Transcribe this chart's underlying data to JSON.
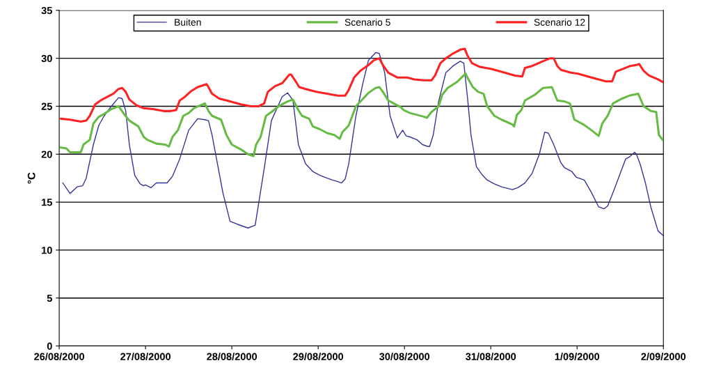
{
  "chart_data": {
    "type": "line",
    "ylabel": "°C",
    "xlim": [
      "2000-08-26",
      "2000-09-02"
    ],
    "ylim": [
      0,
      35
    ],
    "xticks": [
      {
        "value": "2000-08-26",
        "label": "26/08/2000"
      },
      {
        "value": "2000-08-27",
        "label": "27/08/2000"
      },
      {
        "value": "2000-08-28",
        "label": "28/08/2000"
      },
      {
        "value": "2000-08-29",
        "label": "29/08/2000"
      },
      {
        "value": "2000-08-30",
        "label": "30/08/2000"
      },
      {
        "value": "2000-08-31",
        "label": "31/08/2000"
      },
      {
        "value": "2000-09-01",
        "label": "1/09/2000"
      },
      {
        "value": "2000-09-02",
        "label": "2/09/2000"
      }
    ],
    "yticks": [
      0,
      5,
      10,
      15,
      20,
      25,
      30,
      35
    ],
    "grid": "y",
    "legend": "top",
    "marker": "none",
    "line_style": "solid",
    "series": [
      {
        "name": "Buiten",
        "color": "#333399",
        "x": [
          "2000-08-26T01:00",
          "2000-08-26T03:00",
          "2000-08-26T05:00",
          "2000-08-26T06:30",
          "2000-08-26T07:30",
          "2000-08-26T09:30",
          "2000-08-26T11:00",
          "2000-08-26T12:30",
          "2000-08-26T14:30",
          "2000-08-26T16:30",
          "2000-08-26T17:30",
          "2000-08-26T18:30",
          "2000-08-26T19:30",
          "2000-08-26T21:00",
          "2000-08-26T22:30",
          "2000-08-26T23:30",
          "2000-08-27T00:00",
          "2000-08-27T01:30",
          "2000-08-27T03:00",
          "2000-08-27T06:00",
          "2000-08-27T07:30",
          "2000-08-27T09:30",
          "2000-08-27T12:00",
          "2000-08-27T14:30",
          "2000-08-27T16:30",
          "2000-08-27T17:30",
          "2000-08-27T18:30",
          "2000-08-27T20:00",
          "2000-08-27T21:30",
          "2000-08-27T23:30",
          "2000-08-28T01:30",
          "2000-08-28T04:30",
          "2000-08-28T06:30",
          "2000-08-28T07:00",
          "2000-08-28T09:00",
          "2000-08-28T11:00",
          "2000-08-28T14:00",
          "2000-08-28T15:30",
          "2000-08-28T17:00",
          "2000-08-28T18:30",
          "2000-08-28T20:30",
          "2000-08-28T22:30",
          "2000-08-29T00:30",
          "2000-08-29T02:30",
          "2000-08-29T04:00",
          "2000-08-29T05:00",
          "2000-08-29T06:30",
          "2000-08-29T07:30",
          "2000-08-29T08:30",
          "2000-08-29T10:30",
          "2000-08-29T12:30",
          "2000-08-29T14:00",
          "2000-08-29T16:00",
          "2000-08-29T17:00",
          "2000-08-29T18:30",
          "2000-08-29T20:00",
          "2000-08-29T22:00",
          "2000-08-29T23:30",
          "2000-08-30T00:30",
          "2000-08-30T01:30",
          "2000-08-30T03:30",
          "2000-08-30T05:00",
          "2000-08-30T06:30",
          "2000-08-30T07:00",
          "2000-08-30T08:00",
          "2000-08-30T09:30",
          "2000-08-30T11:30",
          "2000-08-30T13:30",
          "2000-08-30T15:30",
          "2000-08-30T16:30",
          "2000-08-30T17:30",
          "2000-08-30T18:30",
          "2000-08-30T20:00",
          "2000-08-30T21:30",
          "2000-08-30T23:00",
          "2000-08-31T01:00",
          "2000-08-31T03:00",
          "2000-08-31T06:00",
          "2000-08-31T07:30",
          "2000-08-31T09:30",
          "2000-08-31T11:30",
          "2000-08-31T13:30",
          "2000-08-31T15:00",
          "2000-08-31T16:00",
          "2000-08-31T17:30",
          "2000-08-31T19:30",
          "2000-08-31T20:30",
          "2000-08-31T22:30",
          "2000-08-31T23:45",
          "2000-09-01T02:00",
          "2000-09-01T04:00",
          "2000-09-01T06:00",
          "2000-09-01T07:30",
          "2000-09-01T08:30",
          "2000-09-01T10:00",
          "2000-09-01T12:00",
          "2000-09-01T13:30",
          "2000-09-01T14:30",
          "2000-09-01T16:00",
          "2000-09-01T16:30",
          "2000-09-01T17:30",
          "2000-09-01T19:00",
          "2000-09-01T20:30",
          "2000-09-01T22:30",
          "2000-09-02T00:00"
        ],
        "values": [
          17,
          15.9,
          16.6,
          16.7,
          17.5,
          21,
          23,
          24,
          25,
          25.9,
          25.8,
          24.5,
          21,
          17.8,
          16.9,
          16.7,
          16.8,
          16.5,
          17,
          17,
          17.7,
          19.5,
          22.5,
          23.7,
          23.6,
          23.5,
          22,
          19,
          16,
          13,
          12.7,
          12.3,
          12.6,
          13.8,
          18.5,
          23.5,
          26,
          26.4,
          25.6,
          21,
          19,
          18.2,
          17.8,
          17.5,
          17.3,
          17.2,
          17,
          17.4,
          19,
          24,
          27.5,
          29.8,
          30.6,
          30.5,
          28.5,
          24,
          21.7,
          22.5,
          21.9,
          21.8,
          21.5,
          21,
          20.8,
          20.8,
          22,
          25.5,
          28.5,
          29.2,
          29.7,
          29.5,
          26,
          22,
          18.7,
          17.9,
          17.3,
          16.9,
          16.6,
          16.3,
          16.5,
          17,
          18,
          20,
          22.3,
          22.2,
          21,
          19.1,
          18.6,
          18.2,
          17.6,
          17.3,
          16,
          14.5,
          14.3,
          14.6,
          16,
          18,
          19.5,
          19.7,
          20.2,
          20,
          19,
          17,
          14.5,
          12,
          11.5
        ]
      },
      {
        "name": "Scenario 5",
        "color": "#66bb44",
        "x": [
          "2000-08-26T00:30",
          "2000-08-26T02:00",
          "2000-08-26T03:00",
          "2000-08-26T06:00",
          "2000-08-26T06:45",
          "2000-08-26T08:30",
          "2000-08-26T09:30",
          "2000-08-26T11:00",
          "2000-08-26T12:30",
          "2000-08-26T14:30",
          "2000-08-26T16:30",
          "2000-08-26T18:00",
          "2000-08-26T19:30",
          "2000-08-26T22:00",
          "2000-08-26T23:30",
          "2000-08-27T00:30",
          "2000-08-27T03:00",
          "2000-08-27T05:30",
          "2000-08-27T06:30",
          "2000-08-27T07:30",
          "2000-08-27T09:00",
          "2000-08-27T10:30",
          "2000-08-27T12:00",
          "2000-08-27T13:30",
          "2000-08-27T16:30",
          "2000-08-27T17:30",
          "2000-08-27T18:30",
          "2000-08-27T21:00",
          "2000-08-27T22:30",
          "2000-08-28T00:00",
          "2000-08-28T02:30",
          "2000-08-28T04:30",
          "2000-08-28T06:00",
          "2000-08-28T06:45",
          "2000-08-28T08:00",
          "2000-08-28T09:30",
          "2000-08-28T11:00",
          "2000-08-28T13:00",
          "2000-08-28T15:30",
          "2000-08-28T17:00",
          "2000-08-28T18:30",
          "2000-08-28T19:30",
          "2000-08-28T21:30",
          "2000-08-28T22:30",
          "2000-08-29T00:30",
          "2000-08-29T02:30",
          "2000-08-29T04:30",
          "2000-08-29T06:00",
          "2000-08-29T06:45",
          "2000-08-29T08:30",
          "2000-08-29T10:30",
          "2000-08-29T12:30",
          "2000-08-29T14:00",
          "2000-08-29T16:00",
          "2000-08-29T17:00",
          "2000-08-29T18:00",
          "2000-08-29T19:30",
          "2000-08-29T21:00",
          "2000-08-29T23:00",
          "2000-08-29T23:45",
          "2000-08-30T01:30",
          "2000-08-30T03:30",
          "2000-08-30T05:30",
          "2000-08-30T06:15",
          "2000-08-30T07:30",
          "2000-08-30T09:30",
          "2000-08-30T10:30",
          "2000-08-30T12:00",
          "2000-08-30T14:30",
          "2000-08-30T17:00",
          "2000-08-30T17:30",
          "2000-08-30T19:00",
          "2000-08-30T20:30",
          "2000-08-30T22:00",
          "2000-08-30T23:00",
          "2000-08-31T01:00",
          "2000-08-31T03:00",
          "2000-08-31T06:00",
          "2000-08-31T06:30",
          "2000-08-31T07:15",
          "2000-08-31T08:30",
          "2000-08-31T09:30",
          "2000-08-31T12:15",
          "2000-08-31T14:30",
          "2000-08-31T17:00",
          "2000-08-31T18:30",
          "2000-08-31T20:30",
          "2000-08-31T22:00",
          "2000-08-31T23:15",
          "2000-09-01T01:45",
          "2000-09-01T04:00",
          "2000-09-01T06:00",
          "2000-09-01T07:00",
          "2000-09-01T08:30",
          "2000-09-01T10:00",
          "2000-09-01T12:30",
          "2000-09-01T14:30",
          "2000-09-01T17:00",
          "2000-09-01T18:30",
          "2000-09-01T20:30",
          "2000-09-01T22:00",
          "2000-09-01T22:45",
          "2000-09-02T00:00"
        ],
        "values": [
          20.7,
          20.6,
          20.2,
          20.2,
          21,
          21.5,
          23.2,
          23.9,
          24.2,
          24.7,
          25,
          24.2,
          23.5,
          22.9,
          21.8,
          21.5,
          21.1,
          21,
          20.8,
          21.8,
          22.5,
          24,
          24.3,
          24.8,
          25.3,
          24.5,
          24,
          23.6,
          22,
          21,
          20.5,
          20,
          19.8,
          21,
          21.8,
          24,
          24.4,
          25,
          25.5,
          25.7,
          24.6,
          24,
          23.7,
          22.9,
          22.6,
          22.2,
          22,
          21.6,
          22.3,
          23,
          25,
          25.8,
          26.4,
          26.9,
          27,
          26.5,
          25.6,
          25.3,
          24.9,
          24.6,
          24.3,
          24.1,
          23.9,
          23.8,
          24.4,
          25,
          26.2,
          26.9,
          27.5,
          28.4,
          28,
          27,
          26.5,
          26.3,
          25,
          24,
          23.6,
          23.1,
          22.9,
          24.1,
          24.6,
          25.6,
          26.2,
          26.9,
          27,
          25.6,
          25.5,
          25.3,
          23.6,
          23.1,
          22.5,
          21.9,
          23.2,
          24,
          25.3,
          25.8,
          26.1,
          26.3,
          25,
          24.5,
          24.4,
          22,
          21.4
        ]
      },
      {
        "name": "Scenario 12",
        "color": "#ff2222",
        "x": [
          "2000-08-26T00:30",
          "2000-08-26T03:00",
          "2000-08-26T06:00",
          "2000-08-26T07:30",
          "2000-08-26T08:30",
          "2000-08-26T10:00",
          "2000-08-26T11:30",
          "2000-08-26T13:30",
          "2000-08-26T15:00",
          "2000-08-26T16:30",
          "2000-08-26T17:30",
          "2000-08-26T18:30",
          "2000-08-26T19:30",
          "2000-08-26T21:30",
          "2000-08-26T23:30",
          "2000-08-27T02:00",
          "2000-08-27T05:00",
          "2000-08-27T07:00",
          "2000-08-27T08:30",
          "2000-08-27T09:30",
          "2000-08-27T11:00",
          "2000-08-27T12:45",
          "2000-08-27T14:30",
          "2000-08-27T17:00",
          "2000-08-27T17:30",
          "2000-08-27T18:30",
          "2000-08-27T20:30",
          "2000-08-27T23:30",
          "2000-08-28T02:30",
          "2000-08-28T05:15",
          "2000-08-28T07:30",
          "2000-08-28T09:00",
          "2000-08-28T10:00",
          "2000-08-28T12:00",
          "2000-08-28T14:00",
          "2000-08-28T16:00",
          "2000-08-28T16:30",
          "2000-08-28T17:45",
          "2000-08-28T18:45",
          "2000-08-28T20:30",
          "2000-08-28T23:30",
          "2000-08-29T02:30",
          "2000-08-29T05:30",
          "2000-08-29T07:30",
          "2000-08-29T08:30",
          "2000-08-29T10:00",
          "2000-08-29T11:45",
          "2000-08-29T14:00",
          "2000-08-29T15:30",
          "2000-08-29T17:00",
          "2000-08-29T18:00",
          "2000-08-29T19:30",
          "2000-08-29T22:00",
          "2000-08-30T00:45",
          "2000-08-30T02:45",
          "2000-08-30T05:30",
          "2000-08-30T07:30",
          "2000-08-30T08:30",
          "2000-08-30T10:00",
          "2000-08-30T11:30",
          "2000-08-30T13:30",
          "2000-08-30T15:30",
          "2000-08-30T16:45",
          "2000-08-30T17:30",
          "2000-08-30T18:45",
          "2000-08-30T21:00",
          "2000-08-31T00:00",
          "2000-08-31T03:00",
          "2000-08-31T06:45",
          "2000-08-31T08:45",
          "2000-08-31T09:30",
          "2000-08-31T11:30",
          "2000-08-31T14:30",
          "2000-08-31T16:30",
          "2000-08-31T17:30",
          "2000-08-31T18:30",
          "2000-08-31T19:30",
          "2000-08-31T22:15",
          "2000-09-01T00:15",
          "2000-09-01T04:00",
          "2000-09-01T08:00",
          "2000-09-01T09:45",
          "2000-09-01T10:45",
          "2000-09-01T12:45",
          "2000-09-01T14:45",
          "2000-09-01T16:30",
          "2000-09-01T17:15",
          "2000-09-01T18:30",
          "2000-09-01T20:00",
          "2000-09-01T22:30",
          "2000-09-02T00:00"
        ],
        "values": [
          23.7,
          23.6,
          23.4,
          23.5,
          24,
          25.2,
          25.6,
          26,
          26.3,
          26.8,
          26.9,
          26.5,
          25.7,
          25.1,
          24.8,
          24.7,
          24.5,
          24.5,
          24.6,
          25.6,
          26,
          26.6,
          27,
          27.3,
          27,
          26.3,
          25.8,
          25.5,
          25.2,
          25,
          25,
          25.3,
          26.5,
          27.1,
          27.4,
          28.3,
          28.3,
          27.6,
          27,
          26.8,
          26.5,
          26.3,
          26.1,
          26.1,
          26.7,
          28,
          28.7,
          29.3,
          29.8,
          30,
          29.3,
          28.5,
          28,
          28,
          27.8,
          27.7,
          27.7,
          28.2,
          29.5,
          30,
          30.5,
          30.9,
          31,
          30.3,
          29.5,
          29.1,
          28.9,
          28.6,
          28.2,
          28.1,
          29,
          29.2,
          29.7,
          30,
          30,
          29.2,
          28.8,
          28.5,
          28.4,
          28,
          27.6,
          27.6,
          28.6,
          28.9,
          29.2,
          29.3,
          29.4,
          28.7,
          28.2,
          27.8,
          27.5
        ]
      }
    ]
  }
}
